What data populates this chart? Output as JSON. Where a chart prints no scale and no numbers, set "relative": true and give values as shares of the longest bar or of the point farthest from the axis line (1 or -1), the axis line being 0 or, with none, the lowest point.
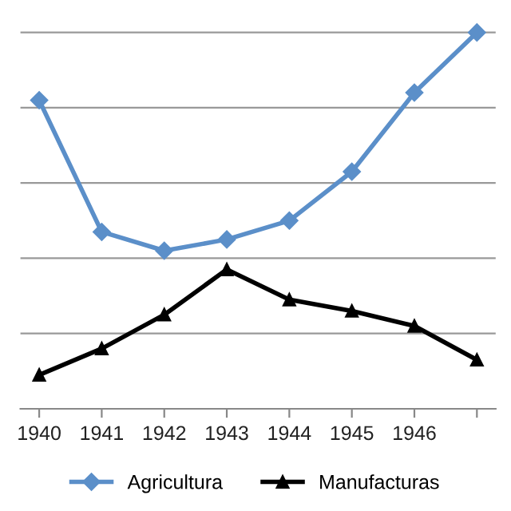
{
  "chart_data": {
    "type": "line",
    "relative": true,
    "categories": [
      "1940",
      "1941",
      "1942",
      "1943",
      "1944",
      "1945",
      "1946",
      null
    ],
    "series": [
      {
        "name": "Agricultura",
        "color": "#5b8fc9",
        "marker": "diamond",
        "values": [
          0.82,
          0.47,
          0.42,
          0.45,
          0.5,
          0.63,
          0.84,
          1
        ]
      },
      {
        "name": "Manufacturas",
        "color": "#000000",
        "marker": "triangle",
        "values": [
          0.09,
          0.16,
          0.25,
          0.37,
          0.29,
          0.26,
          0.22,
          0.13
        ]
      }
    ],
    "grid": "y",
    "legend": "bottom",
    "line_style": "solid"
  }
}
